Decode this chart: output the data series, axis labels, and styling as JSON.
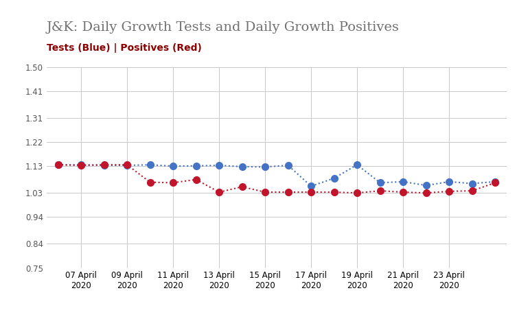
{
  "title": "J&K: Daily Growth Tests and Daily Growth Positives",
  "subtitle": "Tests (Blue) | Positives (Red)",
  "subtitle_color": "#8B0000",
  "title_color": "#707070",
  "ylim": [
    0.75,
    1.5
  ],
  "yticks": [
    0.75,
    0.84,
    0.94,
    1.03,
    1.13,
    1.22,
    1.31,
    1.41,
    1.5
  ],
  "xtick_labels": [
    "07 April\n2020",
    "09 April\n2020",
    "11 April\n2020",
    "13 April\n2020",
    "15 April\n2020",
    "17 April\n2020",
    "19 April\n2020",
    "21 April\n2020",
    "23 April\n2020"
  ],
  "xtick_positions": [
    1,
    3,
    5,
    7,
    9,
    11,
    13,
    15,
    17
  ],
  "blue_values": [
    1.135,
    1.135,
    1.133,
    1.133,
    1.135,
    1.13,
    1.131,
    1.133,
    1.128,
    1.127,
    1.133,
    1.055,
    1.085,
    1.135,
    1.068,
    1.072,
    1.058,
    1.072,
    1.065,
    1.072
  ],
  "red_values": [
    1.135,
    1.133,
    1.135,
    1.135,
    1.07,
    1.068,
    1.08,
    1.033,
    1.053,
    1.033,
    1.033,
    1.033,
    1.033,
    1.03,
    1.038,
    1.033,
    1.03,
    1.036,
    1.038,
    1.068
  ],
  "blue_color": "#4472C4",
  "red_color": "#C0152A",
  "bg_color": "#FFFFFF",
  "grid_color": "#C8C8C8",
  "marker_size": 7,
  "line_width": 1.5,
  "title_fontsize": 14,
  "subtitle_fontsize": 10,
  "tick_fontsize": 8.5
}
